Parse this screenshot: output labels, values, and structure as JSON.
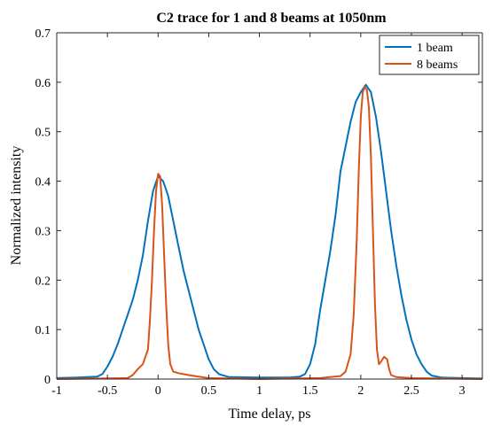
{
  "chart_data": {
    "type": "line",
    "title": "C2 trace for 1 and 8 beams at 1050nm",
    "xlabel": "Time delay, ps",
    "ylabel": "Normalized intensity",
    "xlim": [
      -1,
      3.2
    ],
    "ylim": [
      0,
      0.7
    ],
    "xticks": [
      -1,
      -0.5,
      0,
      0.5,
      1,
      1.5,
      2,
      2.5,
      3
    ],
    "xtick_labels": [
      "-1",
      "-0.5",
      "0",
      "0.5",
      "1",
      "1.5",
      "2",
      "2.5",
      "3"
    ],
    "yticks": [
      0,
      0.1,
      0.2,
      0.3,
      0.4,
      0.5,
      0.6,
      0.7
    ],
    "ytick_labels": [
      "0",
      "0.1",
      "0.2",
      "0.3",
      "0.4",
      "0.5",
      "0.6",
      "0.7"
    ],
    "grid": false,
    "legend_position": "top-right",
    "series": [
      {
        "name": "1 beam",
        "color": "#0072BD",
        "x": [
          -1.0,
          -0.8,
          -0.6,
          -0.55,
          -0.5,
          -0.45,
          -0.4,
          -0.35,
          -0.3,
          -0.25,
          -0.2,
          -0.15,
          -0.1,
          -0.05,
          0.0,
          0.05,
          0.1,
          0.15,
          0.2,
          0.25,
          0.3,
          0.35,
          0.4,
          0.45,
          0.5,
          0.55,
          0.6,
          0.7,
          1.0,
          1.3,
          1.4,
          1.45,
          1.5,
          1.55,
          1.6,
          1.65,
          1.7,
          1.75,
          1.8,
          1.85,
          1.9,
          1.95,
          2.0,
          2.05,
          2.1,
          2.15,
          2.2,
          2.25,
          2.3,
          2.35,
          2.4,
          2.45,
          2.5,
          2.55,
          2.6,
          2.65,
          2.7,
          2.8,
          3.0,
          3.2
        ],
        "y": [
          0.002,
          0.003,
          0.005,
          0.01,
          0.025,
          0.045,
          0.07,
          0.1,
          0.13,
          0.16,
          0.2,
          0.25,
          0.32,
          0.38,
          0.41,
          0.4,
          0.37,
          0.32,
          0.27,
          0.22,
          0.18,
          0.14,
          0.1,
          0.07,
          0.04,
          0.02,
          0.01,
          0.004,
          0.003,
          0.003,
          0.005,
          0.01,
          0.03,
          0.07,
          0.14,
          0.2,
          0.26,
          0.33,
          0.42,
          0.47,
          0.52,
          0.56,
          0.58,
          0.595,
          0.58,
          0.53,
          0.46,
          0.38,
          0.3,
          0.23,
          0.17,
          0.12,
          0.08,
          0.05,
          0.03,
          0.015,
          0.007,
          0.003,
          0.002,
          0.001
        ]
      },
      {
        "name": "8 beams",
        "color": "#D95319",
        "x": [
          -1.0,
          -0.3,
          -0.25,
          -0.2,
          -0.15,
          -0.1,
          -0.08,
          -0.06,
          -0.04,
          -0.02,
          0.0,
          0.02,
          0.04,
          0.06,
          0.08,
          0.1,
          0.12,
          0.15,
          0.2,
          0.25,
          0.3,
          0.4,
          0.5,
          1.0,
          1.6,
          1.8,
          1.85,
          1.9,
          1.93,
          1.96,
          1.98,
          2.0,
          2.02,
          2.04,
          2.06,
          2.08,
          2.1,
          2.12,
          2.14,
          2.16,
          2.18,
          2.2,
          2.23,
          2.26,
          2.28,
          2.3,
          2.35,
          2.5,
          3.2
        ],
        "y": [
          0.0,
          0.002,
          0.008,
          0.02,
          0.03,
          0.06,
          0.12,
          0.2,
          0.3,
          0.38,
          0.415,
          0.41,
          0.35,
          0.25,
          0.15,
          0.07,
          0.03,
          0.015,
          0.012,
          0.01,
          0.008,
          0.005,
          0.002,
          0.0,
          0.002,
          0.006,
          0.015,
          0.05,
          0.13,
          0.28,
          0.42,
          0.53,
          0.58,
          0.59,
          0.585,
          0.55,
          0.45,
          0.3,
          0.15,
          0.06,
          0.03,
          0.035,
          0.045,
          0.04,
          0.02,
          0.008,
          0.004,
          0.002,
          0.0
        ]
      }
    ]
  }
}
